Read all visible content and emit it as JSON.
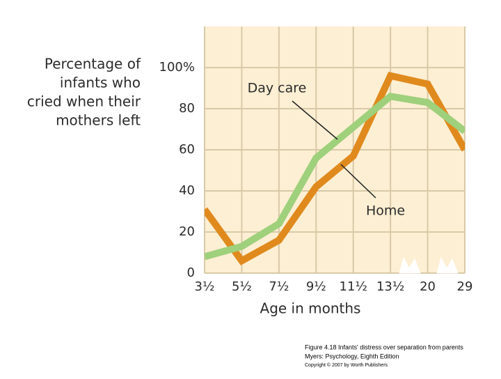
{
  "chart_data": {
    "type": "line",
    "ylabel": [
      "Percentage of",
      "infants who",
      "cried when their",
      "mothers left"
    ],
    "xlabel": "Age in months",
    "categories": [
      "3½",
      "5½",
      "7½",
      "9½",
      "11½",
      "13½",
      "20",
      "29"
    ],
    "series": [
      {
        "name": "Home",
        "color": "#e08a1e",
        "values": [
          31,
          6,
          16,
          42,
          57,
          96,
          92,
          60
        ]
      },
      {
        "name": "Day care",
        "color": "#9fd07c",
        "values": [
          8,
          13,
          24,
          56,
          71,
          86,
          83,
          69
        ]
      }
    ],
    "ylim": [
      0,
      120
    ],
    "yticks": [
      0,
      20,
      40,
      60,
      80,
      {
        "value": 100,
        "label": "100%"
      }
    ],
    "grid": true
  },
  "caption": [
    "Figure 4.18 Infants' distress over separation from parents",
    "Myers: Psychology, Eighth Edition",
    "Copyright © 2007 by Worth Publishers"
  ]
}
